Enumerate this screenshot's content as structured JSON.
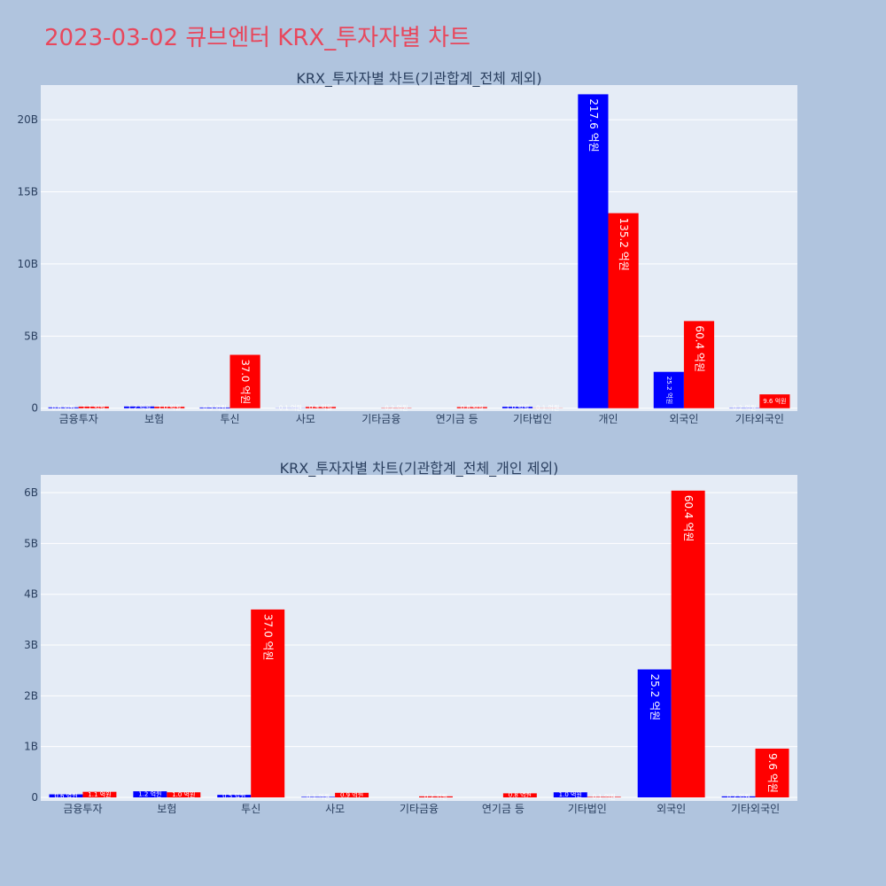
{
  "page_title": "2023-03-02 큐브엔터 KRX_투자자별 차트",
  "colors": {
    "buy": "#0000ff",
    "sell": "#ff0000",
    "page_bg": "#b0c4de",
    "plot_bg": "#e5ecf6",
    "title": "#e8475c"
  },
  "chart_data": [
    {
      "type": "bar",
      "title": "KRX_투자자별 차트(기관합계_전체 제외)",
      "categories": [
        "금융투자",
        "보험",
        "투신",
        "사모",
        "기타금융",
        "연기금 등",
        "기타법인",
        "개인",
        "외국인",
        "기타외국인"
      ],
      "yticks": [
        {
          "value": 0,
          "label": "0"
        },
        {
          "value": 5000000000,
          "label": "5B"
        },
        {
          "value": 10000000000,
          "label": "10B"
        },
        {
          "value": 15000000000,
          "label": "15B"
        },
        {
          "value": 20000000000,
          "label": "20B"
        }
      ],
      "ylim": [
        -200000000,
        22400000000
      ],
      "series": [
        {
          "color": "#0000ff",
          "values": [
            60000000,
            120000000,
            50000000,
            10000000,
            0,
            0,
            100000000,
            21760000000,
            2520000000,
            20000000
          ],
          "labels": [
            "0.6 억원",
            "1.2 억원",
            "0.5 억원",
            "0.1 억원",
            "",
            "",
            "1.0 억원",
            "217.6 억원",
            "25.2 억원",
            "0.2 억원"
          ]
        },
        {
          "color": "#ff0000",
          "values": [
            110000000,
            100000000,
            3700000000,
            90000000,
            20000000,
            80000000,
            10000000,
            13520000000,
            6040000000,
            960000000
          ],
          "labels": [
            "1.1 억원",
            "1.0 억원",
            "37.0 억원",
            "0.9 억원",
            "0.2 억원",
            "0.8 억원",
            "0.1 억원",
            "135.2 억원",
            "60.4 억원",
            "9.6 억원"
          ]
        }
      ]
    },
    {
      "type": "bar",
      "title": "KRX_투자자별 차트(기관합계_전체_개인 제외)",
      "categories": [
        "금융투자",
        "보험",
        "투신",
        "사모",
        "기타금융",
        "연기금 등",
        "기타법인",
        "외국인",
        "기타외국인"
      ],
      "yticks": [
        {
          "value": 0,
          "label": "0"
        },
        {
          "value": 1000000000,
          "label": "1B"
        },
        {
          "value": 2000000000,
          "label": "2B"
        },
        {
          "value": 3000000000,
          "label": "3B"
        },
        {
          "value": 4000000000,
          "label": "4B"
        },
        {
          "value": 5000000000,
          "label": "5B"
        },
        {
          "value": 6000000000,
          "label": "6B"
        }
      ],
      "ylim": [
        -70000000,
        6350000000
      ],
      "series": [
        {
          "color": "#0000ff",
          "values": [
            60000000,
            120000000,
            50000000,
            10000000,
            0,
            0,
            100000000,
            2520000000,
            20000000
          ],
          "labels": [
            "0.6 억원",
            "1.2 억원",
            "0.5 억원",
            "0.1 억원",
            "",
            "",
            "1.0 억원",
            "25.2 억원",
            "0.2 억원"
          ]
        },
        {
          "color": "#ff0000",
          "values": [
            110000000,
            100000000,
            3700000000,
            90000000,
            20000000,
            80000000,
            10000000,
            6040000000,
            960000000
          ],
          "labels": [
            "1.1 억원",
            "1.0 억원",
            "37.0 억원",
            "0.9 억원",
            "0.2 억원",
            "0.8 억원",
            "0.1 억원",
            "60.4 억원",
            "9.6 억원"
          ]
        }
      ]
    }
  ]
}
